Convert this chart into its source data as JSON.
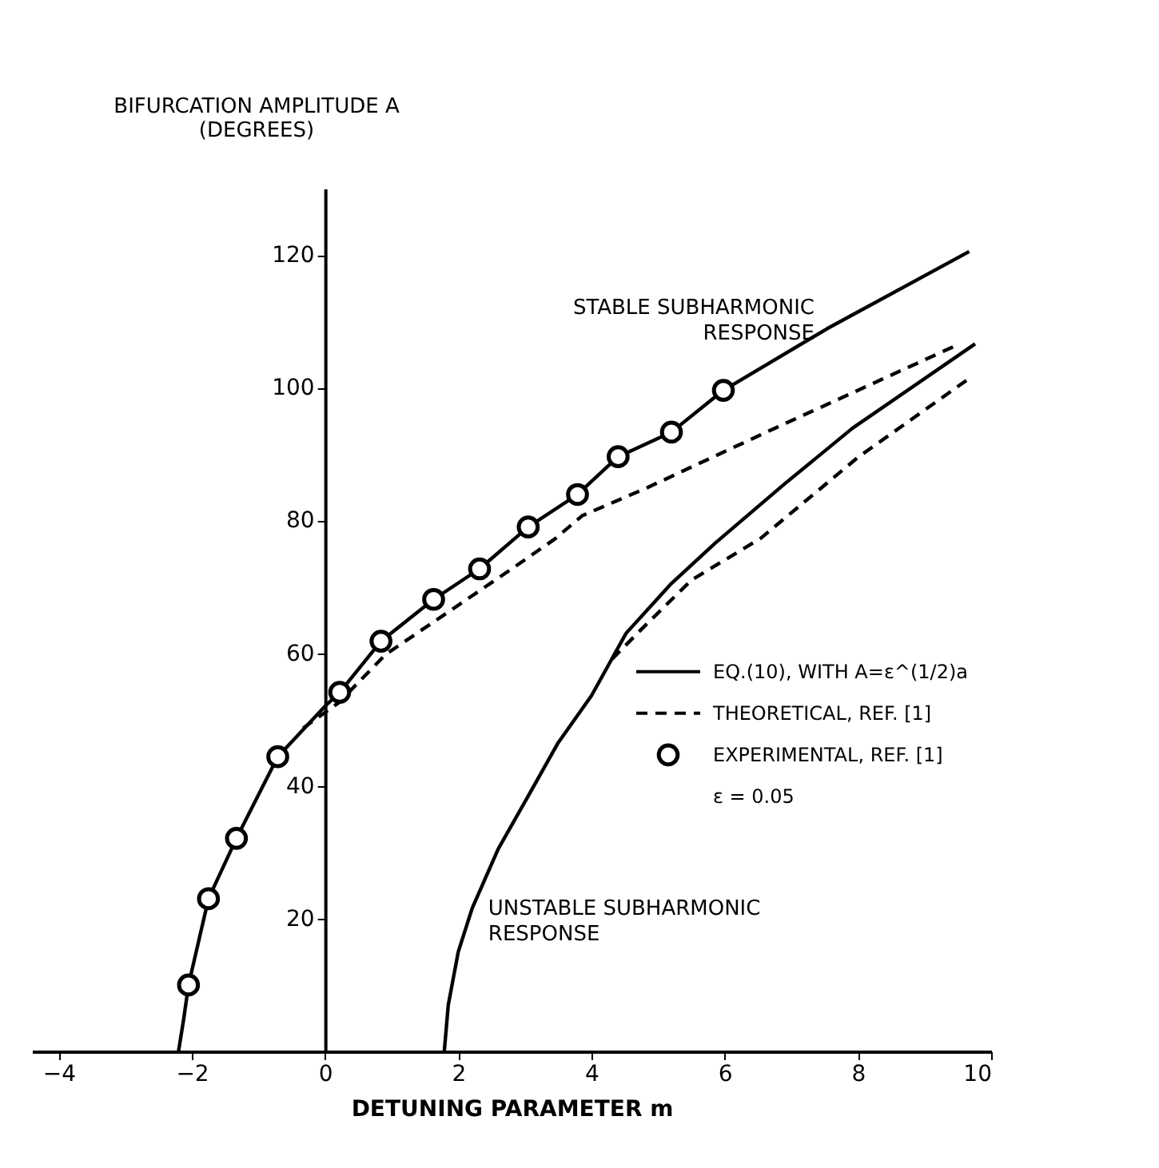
{
  "chart_data": {
    "type": "line",
    "xlabel": "DETUNING PARAMETER m",
    "ylabel": "BIFURCATION AMPLITUDE A\n(DEGREES)",
    "xlim": [
      -4.4,
      10
    ],
    "ylim": [
      0,
      130
    ],
    "xticks": [
      -4,
      -2,
      0,
      2,
      4,
      6,
      8,
      10
    ],
    "yticks": [
      20,
      40,
      60,
      80,
      100,
      120
    ],
    "grid": false,
    "legend": "right",
    "series": [
      {
        "name": "EQ.(10), WITH A=ε^(1/2)a",
        "color": "#000000",
        "type": "line",
        "line_style": "solid",
        "x": [
          -2.2,
          -2.12,
          -2.05,
          -1.75,
          -1.33,
          -0.71,
          0,
          0.22,
          0.84,
          1.63,
          2.32,
          3.05,
          3.79,
          4.4,
          5.2,
          5.98,
          7.54,
          9.67
        ],
        "values": [
          0,
          5,
          10,
          23,
          32.1,
          44.4,
          52,
          54.1,
          61.8,
          68.1,
          72.7,
          79.0,
          83.9,
          89.6,
          93.3,
          99.6,
          108.9,
          120.5
        ]
      },
      {
        "color": "#000000",
        "type": "line",
        "line_style": "solid",
        "x": [
          1.79,
          1.85,
          2.0,
          2.21,
          2.6,
          3.04,
          3.5,
          4.0,
          4.52,
          5.2,
          5.86,
          6.9,
          7.92,
          9.76
        ],
        "values": [
          0,
          7,
          15,
          21.6,
          30.5,
          38.3,
          46.5,
          53.6,
          63.0,
          70.5,
          76.6,
          85.5,
          93.9,
          106.6
        ]
      },
      {
        "name": "THEORETICAL, REF. [1]",
        "color": "#000000",
        "type": "line",
        "line_style": "dashed",
        "x": [
          -0.33,
          0.2,
          0.91,
          2.76,
          3.45,
          3.86,
          4.83,
          6.54,
          9.46
        ],
        "values": [
          48.7,
          52.5,
          59.8,
          72.4,
          77.2,
          80.7,
          84.9,
          92.9,
          106.3
        ]
      },
      {
        "color": "#000000",
        "type": "line",
        "line_style": "dashed",
        "x": [
          4.31,
          4.72,
          5.5,
          6.54,
          8.0,
          9.7
        ],
        "values": [
          59.1,
          63.3,
          71.0,
          77.3,
          89.5,
          101.6
        ]
      },
      {
        "name": "EXPERIMENTAL, REF. [1]",
        "color": "#000000",
        "type": "scatter",
        "marker": "circle",
        "x": [
          -2.05,
          -1.75,
          -1.33,
          -0.71,
          0.22,
          0.84,
          1.63,
          2.32,
          3.05,
          3.79,
          4.4,
          5.2,
          5.98
        ],
        "values": [
          10,
          23,
          32.1,
          44.4,
          54.1,
          61.8,
          68.1,
          72.7,
          79.0,
          83.9,
          89.6,
          93.3,
          99.6
        ]
      }
    ],
    "annotations": [
      {
        "text": "STABLE SUBHARMONIC\nRESPONSE",
        "x": 7.54,
        "y": 108.9
      },
      {
        "text": "UNSTABLE SUBHARMONIC\nRESPONSE",
        "x": 2.21,
        "y": 21.6
      },
      "ε = 0.05"
    ]
  }
}
